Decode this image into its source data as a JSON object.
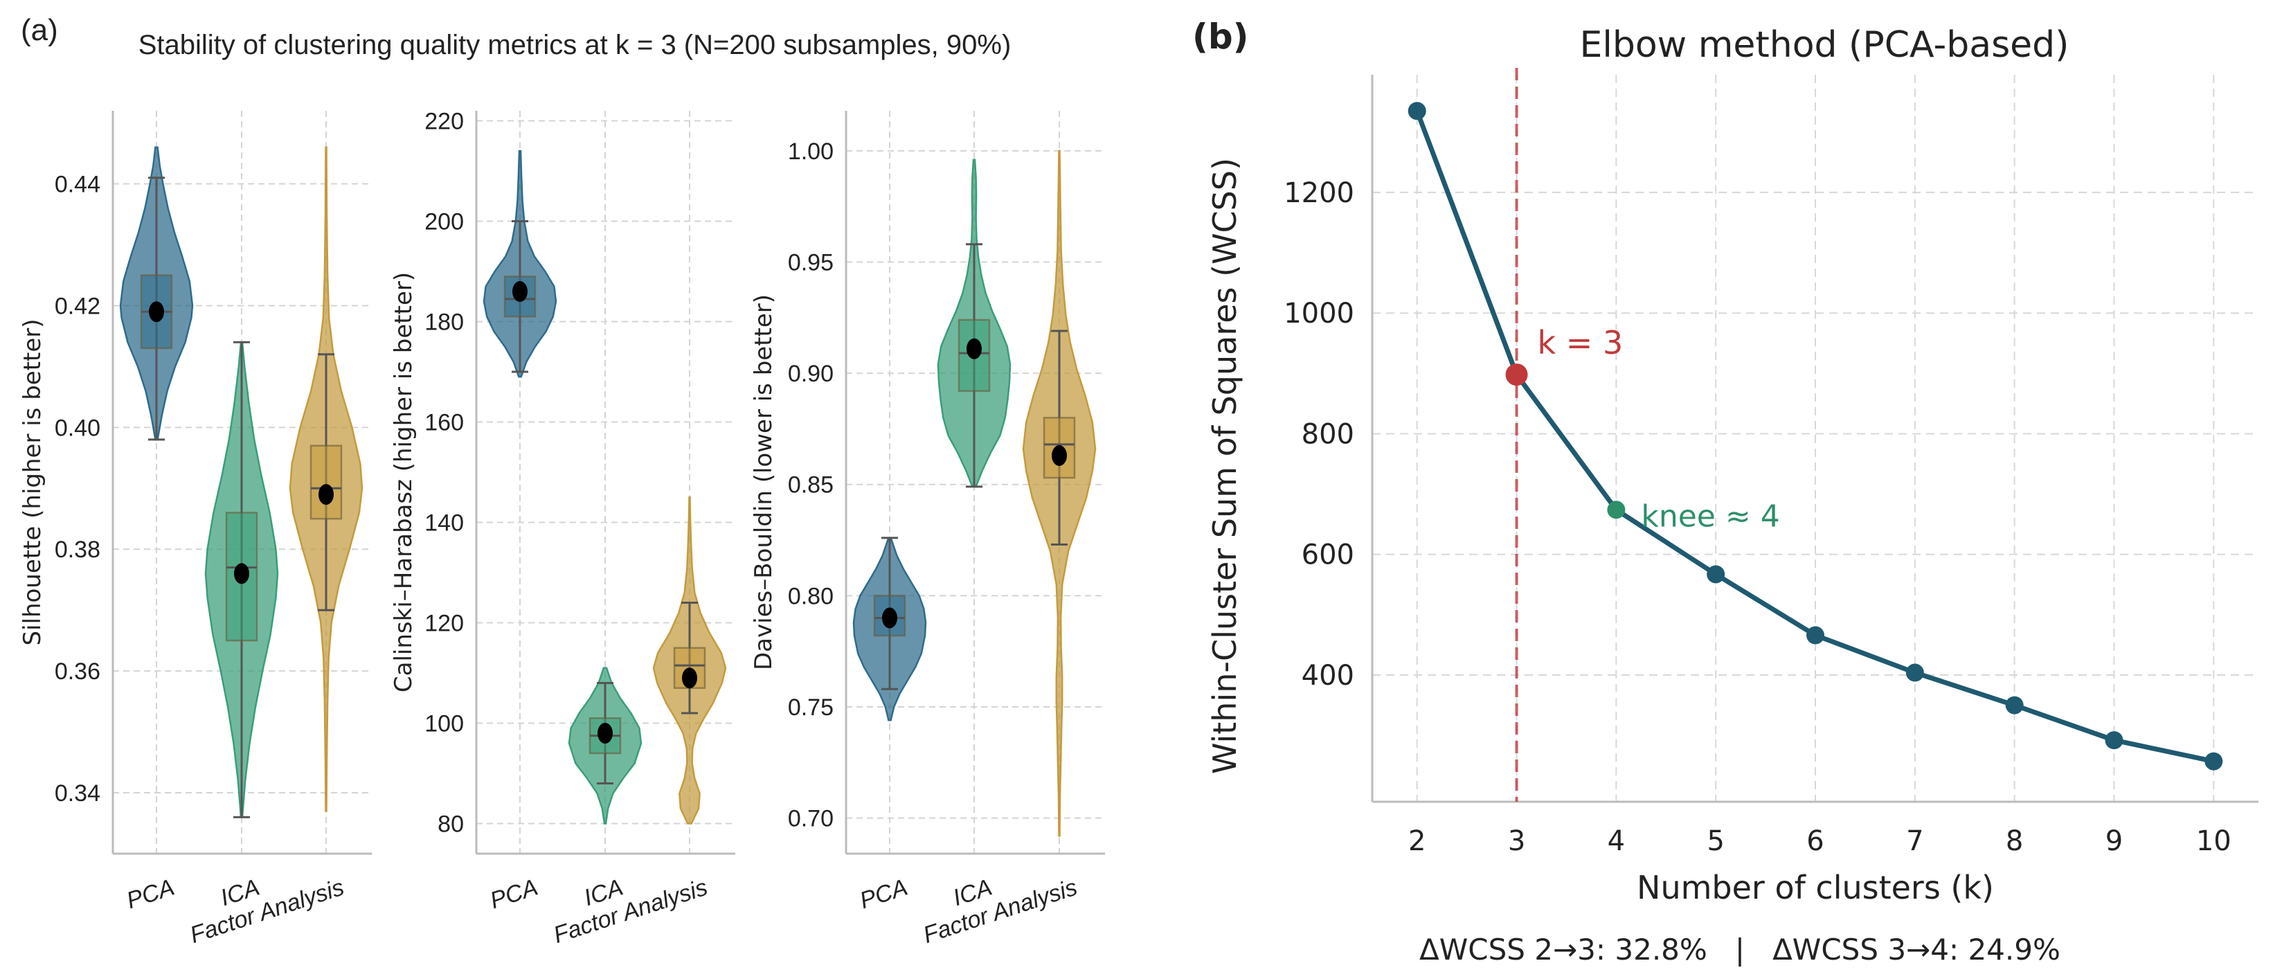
{
  "panel_a": {
    "label": "(a)",
    "title": "Stability of clustering quality metrics at k = 3 (N=200 subsamples, 90%)"
  },
  "panel_b": {
    "label": "(b)",
    "footer": "ΔWCSS 2→3: 32.8%   |   ΔWCSS 3→4: 24.9%"
  },
  "colors": {
    "PCA": "#2e6b8a",
    "ICA": "#3a9e78",
    "Factor Analysis": "#c39b3e",
    "elbow_line": "#1f5a70",
    "chosen_k": "#c0393b",
    "knee": "#2e8f6a"
  },
  "chart_data": [
    {
      "type": "violin",
      "id": "silhouette",
      "title": "",
      "xlabel": "",
      "ylabel": "Silhouette (higher is better)",
      "categories": [
        "PCA",
        "ICA",
        "Factor Analysis"
      ],
      "ylim": [
        0.33,
        0.452
      ],
      "yticks": [
        0.34,
        0.36,
        0.38,
        0.4,
        0.42,
        0.44
      ],
      "yticklabels": [
        "0.34",
        "0.36",
        "0.38",
        "0.40",
        "0.42",
        "0.44"
      ],
      "series": [
        {
          "name": "PCA",
          "min": 0.398,
          "q1": 0.413,
          "median": 0.419,
          "q3": 0.425,
          "max": 0.441,
          "mean": 0.419,
          "kde_min": 0.398,
          "kde_max": 0.446,
          "profile": [
            [
              0.398,
              0.03
            ],
            [
              0.402,
              0.15
            ],
            [
              0.406,
              0.3
            ],
            [
              0.41,
              0.52
            ],
            [
              0.414,
              0.8
            ],
            [
              0.418,
              0.97
            ],
            [
              0.42,
              1.0
            ],
            [
              0.424,
              0.92
            ],
            [
              0.428,
              0.72
            ],
            [
              0.432,
              0.5
            ],
            [
              0.436,
              0.32
            ],
            [
              0.44,
              0.18
            ],
            [
              0.443,
              0.09
            ],
            [
              0.446,
              0.03
            ]
          ]
        },
        {
          "name": "ICA",
          "min": 0.336,
          "q1": 0.365,
          "median": 0.377,
          "q3": 0.386,
          "max": 0.414,
          "mean": 0.376,
          "kde_min": 0.336,
          "kde_max": 0.414,
          "profile": [
            [
              0.336,
              0.02
            ],
            [
              0.342,
              0.1
            ],
            [
              0.348,
              0.22
            ],
            [
              0.354,
              0.38
            ],
            [
              0.36,
              0.58
            ],
            [
              0.366,
              0.8
            ],
            [
              0.372,
              0.95
            ],
            [
              0.376,
              1.0
            ],
            [
              0.38,
              0.95
            ],
            [
              0.386,
              0.78
            ],
            [
              0.392,
              0.55
            ],
            [
              0.398,
              0.35
            ],
            [
              0.404,
              0.2
            ],
            [
              0.41,
              0.08
            ],
            [
              0.414,
              0.02
            ]
          ]
        },
        {
          "name": "Factor Analysis",
          "min": 0.37,
          "q1": 0.385,
          "median": 0.39,
          "q3": 0.397,
          "max": 0.412,
          "mean": 0.389,
          "kde_min": 0.337,
          "kde_max": 0.446,
          "profile": [
            [
              0.337,
              0.01
            ],
            [
              0.345,
              0.02
            ],
            [
              0.355,
              0.04
            ],
            [
              0.362,
              0.07
            ],
            [
              0.368,
              0.15
            ],
            [
              0.374,
              0.35
            ],
            [
              0.38,
              0.65
            ],
            [
              0.386,
              0.92
            ],
            [
              0.39,
              1.0
            ],
            [
              0.394,
              0.95
            ],
            [
              0.4,
              0.72
            ],
            [
              0.406,
              0.42
            ],
            [
              0.412,
              0.2
            ],
            [
              0.418,
              0.08
            ],
            [
              0.425,
              0.04
            ],
            [
              0.435,
              0.02
            ],
            [
              0.446,
              0.01
            ]
          ]
        }
      ]
    },
    {
      "type": "violin",
      "id": "calinski",
      "title": "",
      "xlabel": "",
      "ylabel": "Calinski–Harabasz (higher is better)",
      "categories": [
        "PCA",
        "ICA",
        "Factor Analysis"
      ],
      "ylim": [
        74,
        222
      ],
      "yticks": [
        80,
        100,
        120,
        140,
        160,
        180,
        200,
        220
      ],
      "yticklabels": [
        "80",
        "100",
        "120",
        "140",
        "160",
        "180",
        "200",
        "220"
      ],
      "series": [
        {
          "name": "PCA",
          "min": 170,
          "q1": 181,
          "median": 184.5,
          "q3": 189,
          "max": 200,
          "mean": 186,
          "kde_min": 169,
          "kde_max": 214,
          "profile": [
            [
              169,
              0.03
            ],
            [
              172,
              0.18
            ],
            [
              175,
              0.42
            ],
            [
              178,
              0.72
            ],
            [
              181,
              0.92
            ],
            [
              184,
              1.0
            ],
            [
              187,
              0.95
            ],
            [
              190,
              0.7
            ],
            [
              193,
              0.4
            ],
            [
              196,
              0.22
            ],
            [
              200,
              0.12
            ],
            [
              204,
              0.07
            ],
            [
              209,
              0.04
            ],
            [
              214,
              0.02
            ]
          ]
        },
        {
          "name": "ICA",
          "min": 88,
          "q1": 94,
          "median": 97.5,
          "q3": 101,
          "max": 108,
          "mean": 98,
          "kde_min": 80,
          "kde_max": 111,
          "profile": [
            [
              80,
              0.02
            ],
            [
              83,
              0.08
            ],
            [
              86,
              0.22
            ],
            [
              89,
              0.5
            ],
            [
              92,
              0.82
            ],
            [
              96,
              1.0
            ],
            [
              99,
              0.95
            ],
            [
              102,
              0.72
            ],
            [
              105,
              0.42
            ],
            [
              108,
              0.18
            ],
            [
              111,
              0.04
            ]
          ]
        },
        {
          "name": "Factor Analysis",
          "min": 102,
          "q1": 107,
          "median": 111.5,
          "q3": 115,
          "max": 124,
          "mean": 109,
          "kde_min": 80,
          "kde_max": 145,
          "profile": [
            [
              80,
              0.05
            ],
            [
              83,
              0.25
            ],
            [
              86,
              0.28
            ],
            [
              89,
              0.14
            ],
            [
              92,
              0.07
            ],
            [
              95,
              0.08
            ],
            [
              98,
              0.18
            ],
            [
              101,
              0.4
            ],
            [
              104,
              0.65
            ],
            [
              108,
              0.9
            ],
            [
              111,
              1.0
            ],
            [
              114,
              0.88
            ],
            [
              118,
              0.55
            ],
            [
              122,
              0.3
            ],
            [
              126,
              0.14
            ],
            [
              131,
              0.07
            ],
            [
              136,
              0.04
            ],
            [
              141,
              0.02
            ],
            [
              145,
              0.01
            ]
          ]
        }
      ]
    },
    {
      "type": "violin",
      "id": "davies_bouldin",
      "title": "",
      "xlabel": "",
      "ylabel": "Davies–Bouldin (lower is better)",
      "categories": [
        "PCA",
        "ICA",
        "Factor Analysis"
      ],
      "ylim": [
        0.684,
        1.018
      ],
      "yticks": [
        0.7,
        0.75,
        0.8,
        0.85,
        0.9,
        0.95,
        1.0
      ],
      "yticklabels": [
        "0.70",
        "0.75",
        "0.80",
        "0.85",
        "0.90",
        "0.95",
        "1.00"
      ],
      "series": [
        {
          "name": "PCA",
          "min": 0.758,
          "q1": 0.782,
          "median": 0.79,
          "q3": 0.8,
          "max": 0.826,
          "mean": 0.79,
          "kde_min": 0.744,
          "kde_max": 0.826,
          "profile": [
            [
              0.744,
              0.03
            ],
            [
              0.75,
              0.12
            ],
            [
              0.756,
              0.28
            ],
            [
              0.762,
              0.5
            ],
            [
              0.768,
              0.72
            ],
            [
              0.774,
              0.88
            ],
            [
              0.782,
              0.98
            ],
            [
              0.788,
              1.0
            ],
            [
              0.794,
              0.95
            ],
            [
              0.8,
              0.82
            ],
            [
              0.806,
              0.6
            ],
            [
              0.812,
              0.38
            ],
            [
              0.818,
              0.2
            ],
            [
              0.826,
              0.03
            ]
          ]
        },
        {
          "name": "ICA",
          "min": 0.849,
          "q1": 0.892,
          "median": 0.909,
          "q3": 0.924,
          "max": 0.958,
          "mean": 0.911,
          "kde_min": 0.849,
          "kde_max": 0.996,
          "profile": [
            [
              0.849,
              0.05
            ],
            [
              0.856,
              0.22
            ],
            [
              0.864,
              0.45
            ],
            [
              0.872,
              0.72
            ],
            [
              0.88,
              0.86
            ],
            [
              0.888,
              0.93
            ],
            [
              0.896,
              0.98
            ],
            [
              0.904,
              1.0
            ],
            [
              0.912,
              0.92
            ],
            [
              0.92,
              0.72
            ],
            [
              0.928,
              0.5
            ],
            [
              0.936,
              0.32
            ],
            [
              0.944,
              0.2
            ],
            [
              0.952,
              0.12
            ],
            [
              0.96,
              0.07
            ],
            [
              0.97,
              0.05
            ],
            [
              0.98,
              0.06
            ],
            [
              0.988,
              0.05
            ],
            [
              0.996,
              0.02
            ]
          ]
        },
        {
          "name": "Factor Analysis",
          "min": 0.823,
          "q1": 0.853,
          "median": 0.868,
          "q3": 0.88,
          "max": 0.919,
          "mean": 0.863,
          "kde_min": 0.692,
          "kde_max": 1.0,
          "profile": [
            [
              0.692,
              0.01
            ],
            [
              0.71,
              0.02
            ],
            [
              0.725,
              0.04
            ],
            [
              0.74,
              0.06
            ],
            [
              0.752,
              0.08
            ],
            [
              0.764,
              0.08
            ],
            [
              0.776,
              0.05
            ],
            [
              0.79,
              0.04
            ],
            [
              0.805,
              0.08
            ],
            [
              0.82,
              0.25
            ],
            [
              0.832,
              0.5
            ],
            [
              0.844,
              0.75
            ],
            [
              0.856,
              0.92
            ],
            [
              0.866,
              1.0
            ],
            [
              0.878,
              0.92
            ],
            [
              0.89,
              0.72
            ],
            [
              0.902,
              0.48
            ],
            [
              0.914,
              0.3
            ],
            [
              0.926,
              0.18
            ],
            [
              0.94,
              0.1
            ],
            [
              0.955,
              0.05
            ],
            [
              0.975,
              0.03
            ],
            [
              1.0,
              0.01
            ]
          ]
        }
      ]
    },
    {
      "type": "line",
      "id": "elbow",
      "title": "Elbow method (PCA-based)",
      "xlabel": "Number of clusters (k)",
      "ylabel": "Within-Cluster Sum of Squares (WCSS)",
      "x": [
        2,
        3,
        4,
        5,
        6,
        7,
        8,
        9,
        10
      ],
      "y": [
        1335,
        898,
        674,
        567,
        466,
        404,
        350,
        292,
        257
      ],
      "xlim": [
        1.55,
        10.45
      ],
      "ylim": [
        190,
        1395
      ],
      "xticks": [
        2,
        3,
        4,
        5,
        6,
        7,
        8,
        9,
        10
      ],
      "xticklabels": [
        "2",
        "3",
        "4",
        "5",
        "6",
        "7",
        "8",
        "9",
        "10"
      ],
      "yticks": [
        400,
        600,
        800,
        1000,
        1200
      ],
      "yticklabels": [
        "400",
        "600",
        "800",
        "1000",
        "1200"
      ],
      "grid": true,
      "annotations": [
        {
          "label": "k = 3",
          "x": 3,
          "y": 898,
          "style": "vline"
        },
        {
          "label": "knee ≈ 4",
          "x": 4,
          "y": 674,
          "style": "marker"
        }
      ]
    }
  ]
}
